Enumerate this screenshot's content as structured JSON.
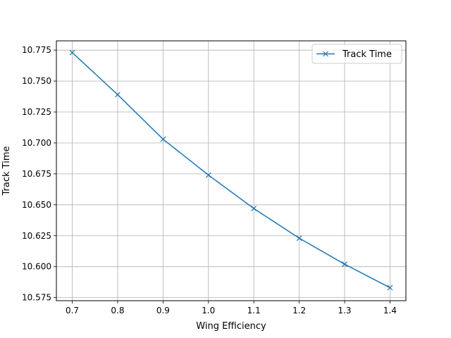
{
  "chart_data": {
    "type": "line",
    "title": "",
    "xlabel": "Wing Efficiency",
    "ylabel": "Track Time",
    "xlim": [
      0.665,
      1.435
    ],
    "ylim": [
      10.5725,
      10.7825
    ],
    "xticks": [
      0.7,
      0.8,
      0.9,
      1.0,
      1.1,
      1.2,
      1.3,
      1.4
    ],
    "xtick_labels": [
      "0.7",
      "0.8",
      "0.9",
      "1.0",
      "1.1",
      "1.2",
      "1.3",
      "1.4"
    ],
    "yticks": [
      10.575,
      10.6,
      10.625,
      10.65,
      10.675,
      10.7,
      10.725,
      10.75,
      10.775
    ],
    "ytick_labels": [
      "10.575",
      "10.600",
      "10.625",
      "10.650",
      "10.675",
      "10.700",
      "10.725",
      "10.750",
      "10.775"
    ],
    "grid": true,
    "legend_position": "top-right",
    "series": [
      {
        "name": "Track Time",
        "color": "#1f77b4",
        "marker": "x",
        "x": [
          0.7,
          0.8,
          0.9,
          1.0,
          1.1,
          1.2,
          1.3,
          1.4
        ],
        "y": [
          10.773,
          10.739,
          10.703,
          10.674,
          10.647,
          10.623,
          10.602,
          10.583
        ]
      }
    ]
  }
}
